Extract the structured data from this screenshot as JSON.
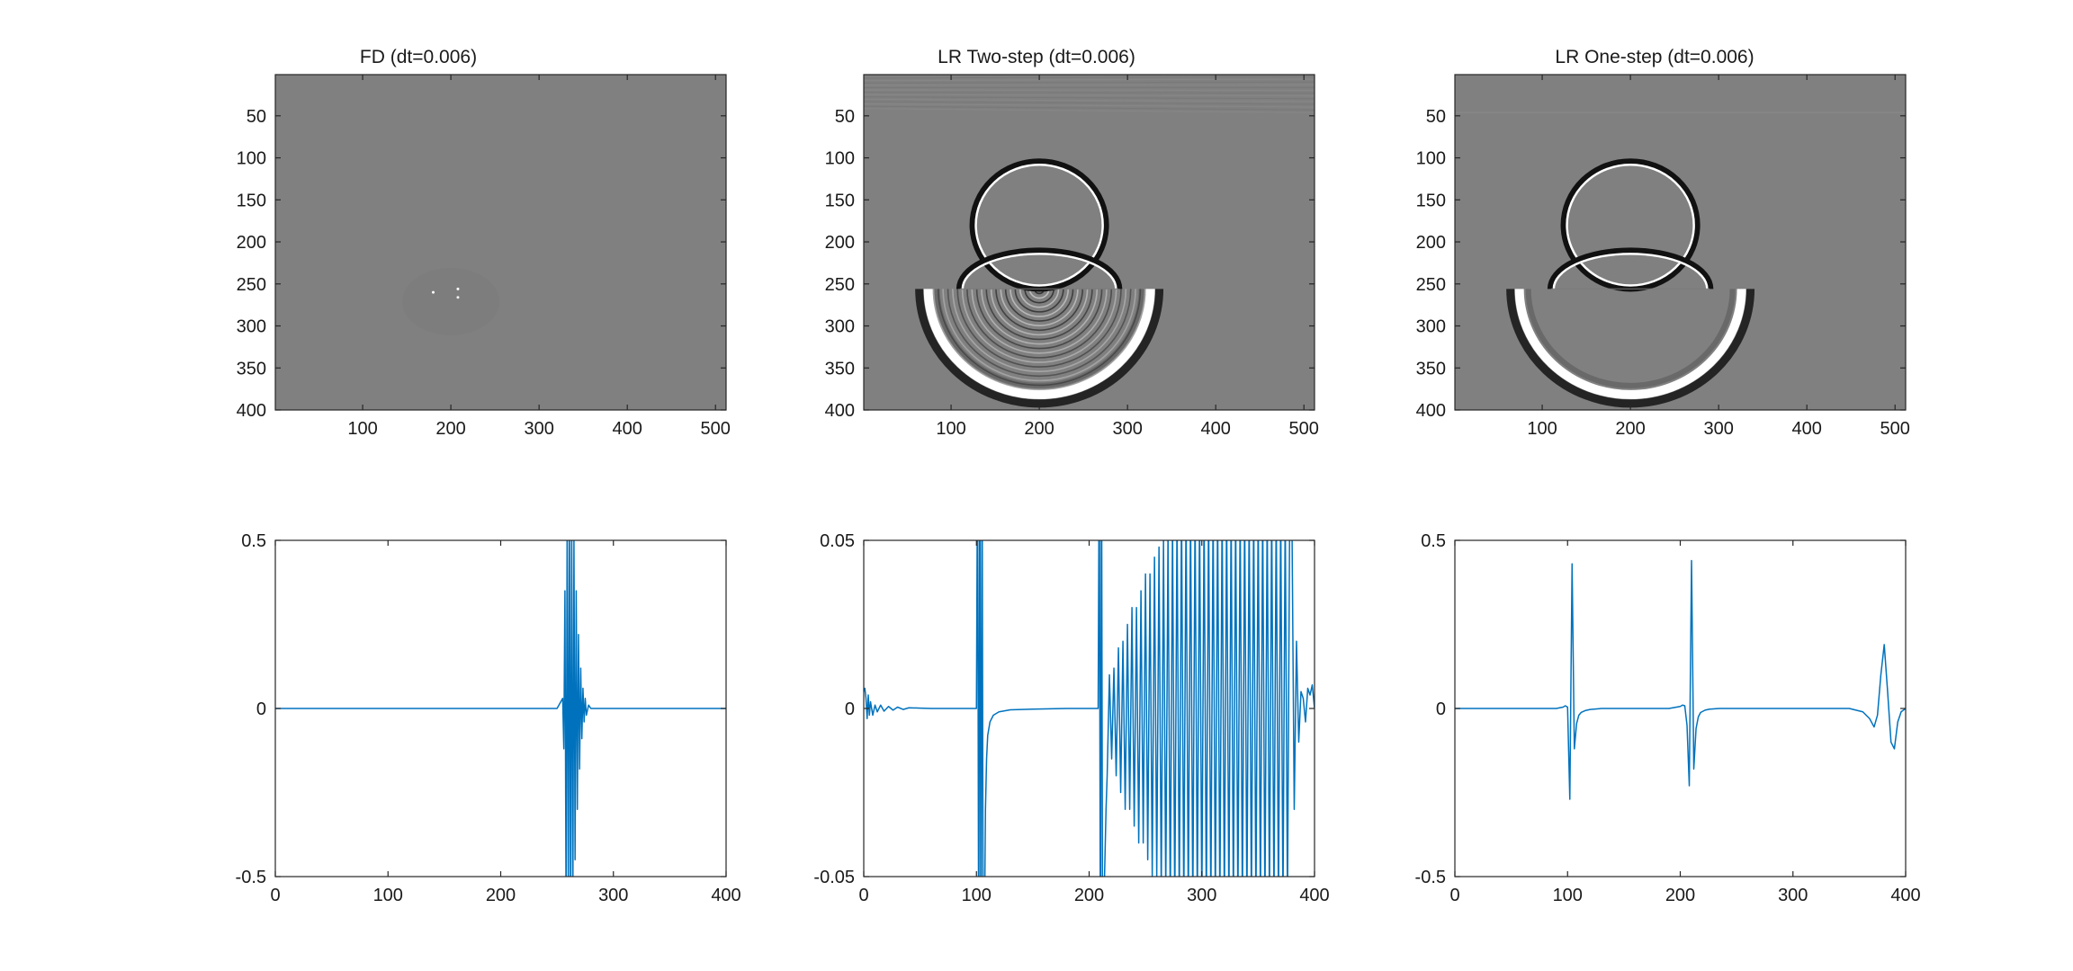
{
  "chart_data": [
    {
      "type": "heatmap",
      "title": "FD (dt=0.006)",
      "colormap": "gray",
      "image_size": [
        400,
        512
      ],
      "x_ticks": [
        100,
        200,
        300,
        400,
        500
      ],
      "y_ticks": [
        50,
        100,
        150,
        200,
        250,
        300,
        350,
        400
      ],
      "xlim": [
        1,
        512
      ],
      "ylim": [
        1,
        400
      ],
      "source": [
        200,
        256
      ],
      "features": "nearly uniform gray field; faint blurred half-disc below source and two bright specks near the source"
    },
    {
      "type": "heatmap",
      "title": "LR Two-step (dt=0.006)",
      "colormap": "gray",
      "image_size": [
        400,
        512
      ],
      "x_ticks": [
        100,
        200,
        300,
        400,
        500
      ],
      "y_ticks": [
        50,
        100,
        150,
        200,
        250,
        300,
        350,
        400
      ],
      "xlim": [
        1,
        512
      ],
      "ylim": [
        1,
        400
      ],
      "source": [
        200,
        256
      ],
      "wavefronts": [
        {
          "kind": "direct",
          "center": [
            200,
            256
          ],
          "radius": 45
        },
        {
          "kind": "upper-fast-arc",
          "center": [
            200,
            180
          ],
          "radius": 75
        },
        {
          "kind": "lower-slow-arc",
          "center": [
            200,
            256
          ],
          "radius": 130
        }
      ],
      "features": "strong oscillatory artifacts inside lower arc and striations near top edge"
    },
    {
      "type": "heatmap",
      "title": "LR One-step (dt=0.006)",
      "colormap": "gray",
      "image_size": [
        400,
        512
      ],
      "x_ticks": [
        100,
        200,
        300,
        400,
        500
      ],
      "y_ticks": [
        50,
        100,
        150,
        200,
        250,
        300,
        350,
        400
      ],
      "xlim": [
        1,
        512
      ],
      "ylim": [
        1,
        400
      ],
      "source": [
        200,
        256
      ],
      "wavefronts": [
        {
          "kind": "direct",
          "center": [
            200,
            256
          ],
          "radius": 45
        },
        {
          "kind": "upper-fast-arc",
          "center": [
            200,
            180
          ],
          "radius": 75
        },
        {
          "kind": "lower-slow-arc",
          "center": [
            200,
            256
          ],
          "radius": 130
        }
      ],
      "features": "clean wavefronts with little dispersion"
    },
    {
      "type": "line",
      "title": "",
      "xlabel": "",
      "ylabel": "",
      "xlim": [
        0,
        400
      ],
      "ylim": [
        -0.5,
        0.5
      ],
      "x_ticks": [
        0,
        100,
        200,
        300,
        400
      ],
      "y_ticks": [
        -0.5,
        0,
        0.5
      ],
      "color": "#0072bd",
      "series": [
        {
          "x": [
            0,
            250,
            255,
            256,
            257,
            258,
            259,
            260,
            261,
            262,
            263,
            264,
            265,
            266,
            267,
            268,
            269,
            270,
            271,
            272,
            273,
            274,
            275,
            276,
            278,
            280,
            400
          ],
          "y": [
            0,
            0,
            0.03,
            -0.12,
            0.35,
            -0.6,
            0.6,
            -0.6,
            0.6,
            -0.6,
            0.55,
            -0.6,
            0.5,
            -0.45,
            0.35,
            -0.3,
            0.22,
            -0.18,
            0.12,
            -0.09,
            0.06,
            -0.04,
            0.03,
            -0.02,
            0.01,
            0,
            0
          ]
        }
      ]
    },
    {
      "type": "line",
      "title": "",
      "xlabel": "",
      "ylabel": "",
      "xlim": [
        0,
        400
      ],
      "ylim": [
        -0.05,
        0.05
      ],
      "x_ticks": [
        0,
        100,
        200,
        300,
        400
      ],
      "y_ticks": [
        -0.05,
        0,
        0.05
      ],
      "color": "#0072bd",
      "series": [
        {
          "x": [
            0,
            1,
            2,
            3,
            4,
            5,
            6,
            8,
            10,
            12,
            15,
            18,
            22,
            26,
            30,
            35,
            40,
            50,
            60,
            70,
            80,
            90,
            100,
            101,
            102,
            103,
            104,
            105,
            106,
            107,
            108,
            109,
            110,
            112,
            115,
            120,
            130,
            150,
            180,
            205,
            208,
            209,
            210,
            211,
            212,
            213,
            214,
            215,
            216,
            218,
            220,
            222,
            224,
            226,
            228,
            230,
            232,
            234,
            236,
            238,
            240,
            242,
            244,
            246,
            248,
            250,
            252,
            254,
            256,
            258,
            260,
            262,
            264,
            266,
            268,
            270,
            272,
            274,
            276,
            278,
            280,
            282,
            284,
            286,
            288,
            290,
            292,
            294,
            296,
            298,
            300,
            302,
            304,
            306,
            308,
            310,
            312,
            314,
            316,
            318,
            320,
            322,
            324,
            326,
            328,
            330,
            332,
            334,
            336,
            338,
            340,
            342,
            344,
            346,
            348,
            350,
            352,
            354,
            356,
            358,
            360,
            362,
            364,
            366,
            368,
            370,
            372,
            374,
            376,
            378,
            380,
            382,
            384,
            386,
            388,
            390,
            392,
            394,
            396,
            398,
            400
          ],
          "y": [
            0.005,
            0.006,
            0.003,
            -0.003,
            0.004,
            -0.002,
            0.002,
            -0.002,
            0.001,
            -0.001,
            0.001,
            -0.0008,
            0.0006,
            -0.0005,
            0.0004,
            -0.0003,
            0.0002,
            0.0001,
            0,
            0,
            0,
            0,
            0,
            0.08,
            -0.08,
            0.08,
            -0.08,
            0.08,
            -0.08,
            -0.07,
            -0.03,
            -0.015,
            -0.008,
            -0.004,
            -0.002,
            -0.001,
            -0.0004,
            -0.0002,
            0,
            0,
            0,
            0.08,
            -0.08,
            0.08,
            -0.08,
            -0.06,
            -0.045,
            -0.03,
            -0.02,
            0.01,
            -0.015,
            0.012,
            -0.02,
            0.018,
            -0.025,
            0.02,
            -0.03,
            0.025,
            -0.03,
            0.03,
            -0.035,
            0.03,
            -0.04,
            0.035,
            -0.04,
            0.04,
            -0.045,
            0.04,
            -0.05,
            0.045,
            -0.05,
            0.048,
            -0.055,
            0.05,
            -0.055,
            0.052,
            -0.06,
            0.055,
            -0.06,
            0.058,
            -0.06,
            0.06,
            -0.06,
            0.06,
            -0.06,
            0.06,
            -0.06,
            0.06,
            -0.06,
            0.06,
            -0.06,
            0.06,
            -0.06,
            0.06,
            -0.06,
            0.06,
            -0.06,
            0.06,
            -0.06,
            0.06,
            -0.06,
            0.06,
            -0.06,
            0.06,
            -0.06,
            0.06,
            -0.06,
            0.06,
            -0.06,
            0.06,
            -0.06,
            0.06,
            -0.06,
            0.06,
            -0.06,
            0.06,
            -0.06,
            0.06,
            -0.06,
            0.06,
            -0.06,
            0.06,
            -0.06,
            0.06,
            -0.06,
            0.06,
            -0.06,
            0.06,
            -0.06,
            0.06,
            0.055,
            -0.03,
            0.02,
            -0.01,
            0.005,
            0.003,
            -0.004,
            0.006,
            0.004,
            0.007,
            0.0
          ]
        }
      ]
    },
    {
      "type": "line",
      "title": "",
      "xlabel": "",
      "ylabel": "",
      "xlim": [
        0,
        400
      ],
      "ylim": [
        -0.5,
        0.5
      ],
      "x_ticks": [
        0,
        100,
        200,
        300,
        400
      ],
      "y_ticks": [
        -0.5,
        0,
        0.5
      ],
      "color": "#0072bd",
      "series": [
        {
          "x": [
            0,
            90,
            96,
            98,
            100,
            102,
            104,
            106,
            108,
            110,
            112,
            116,
            120,
            130,
            190,
            200,
            202,
            204,
            206,
            208,
            210,
            212,
            214,
            216,
            218,
            222,
            226,
            235,
            350,
            362,
            368,
            372,
            375,
            378,
            381,
            384,
            387,
            390,
            393,
            396,
            400
          ],
          "y": [
            0,
            0,
            0.004,
            0.008,
            0.004,
            -0.27,
            0.43,
            -0.12,
            -0.045,
            -0.02,
            -0.012,
            -0.006,
            -0.003,
            0,
            0,
            0.006,
            0.01,
            0.008,
            -0.05,
            -0.23,
            0.44,
            -0.18,
            -0.06,
            -0.025,
            -0.012,
            -0.005,
            -0.002,
            0,
            0,
            -0.01,
            -0.03,
            -0.055,
            -0.02,
            0.1,
            0.19,
            0.05,
            -0.1,
            -0.12,
            -0.04,
            -0.01,
            0
          ]
        }
      ]
    }
  ]
}
